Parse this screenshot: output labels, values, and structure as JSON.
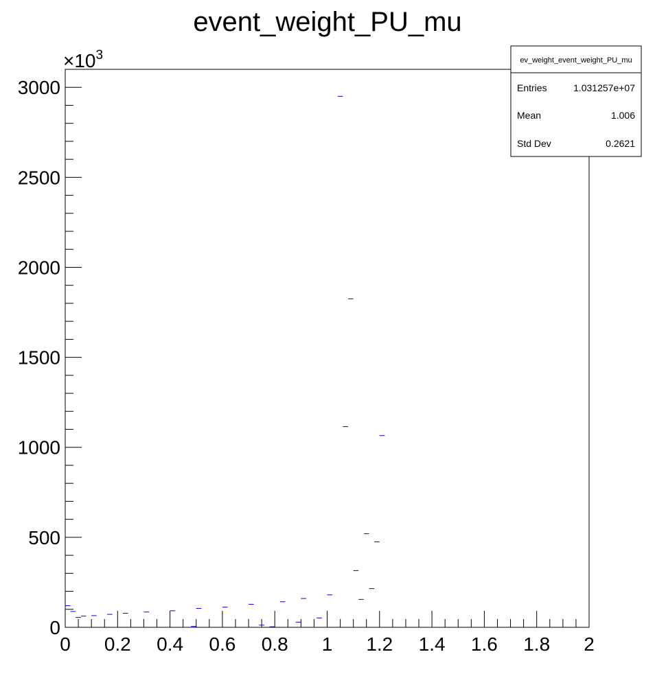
{
  "chart_data": {
    "type": "scatter",
    "title": "event_weight_PU_mu",
    "xlabel": "",
    "ylabel": "",
    "xlim": [
      0,
      2
    ],
    "ylim": [
      0,
      3100
    ],
    "y_multiplier": "×10",
    "y_multiplier_exp": "3",
    "x_ticks": [
      "0",
      "0.2",
      "0.4",
      "0.6",
      "0.8",
      "1",
      "1.2",
      "1.4",
      "1.6",
      "1.8",
      "2"
    ],
    "y_ticks": [
      "0",
      "500",
      "1000",
      "1500",
      "2000",
      "2500",
      "3000"
    ],
    "bin_width": 0.02,
    "grid": false,
    "marker_color": "#0000cc",
    "series": [
      {
        "x": [
          0.01,
          0.03,
          0.05,
          0.07,
          0.11,
          0.17,
          0.23,
          0.31,
          0.41,
          0.49,
          0.51,
          0.61,
          0.71,
          0.75,
          0.79,
          0.83,
          0.89,
          0.91,
          0.97,
          1.01,
          1.05,
          1.07,
          1.09,
          1.11,
          1.13,
          1.15,
          1.17,
          1.19,
          1.21
        ],
        "values": [
          120,
          88,
          55,
          62,
          65,
          72,
          78,
          85,
          92,
          5,
          105,
          112,
          128,
          12,
          3,
          142,
          28,
          160,
          52,
          180,
          2950,
          1115,
          1825,
          315,
          155,
          520,
          215,
          475,
          1065
        ]
      }
    ],
    "stats_box": {
      "title": "ev_weight_event_weight_PU_mu",
      "rows": [
        {
          "label": "Entries",
          "value": "1.031257e+07"
        },
        {
          "label": "Mean",
          "value": "1.006"
        },
        {
          "label": "Std Dev",
          "value": "0.2621"
        }
      ]
    }
  }
}
